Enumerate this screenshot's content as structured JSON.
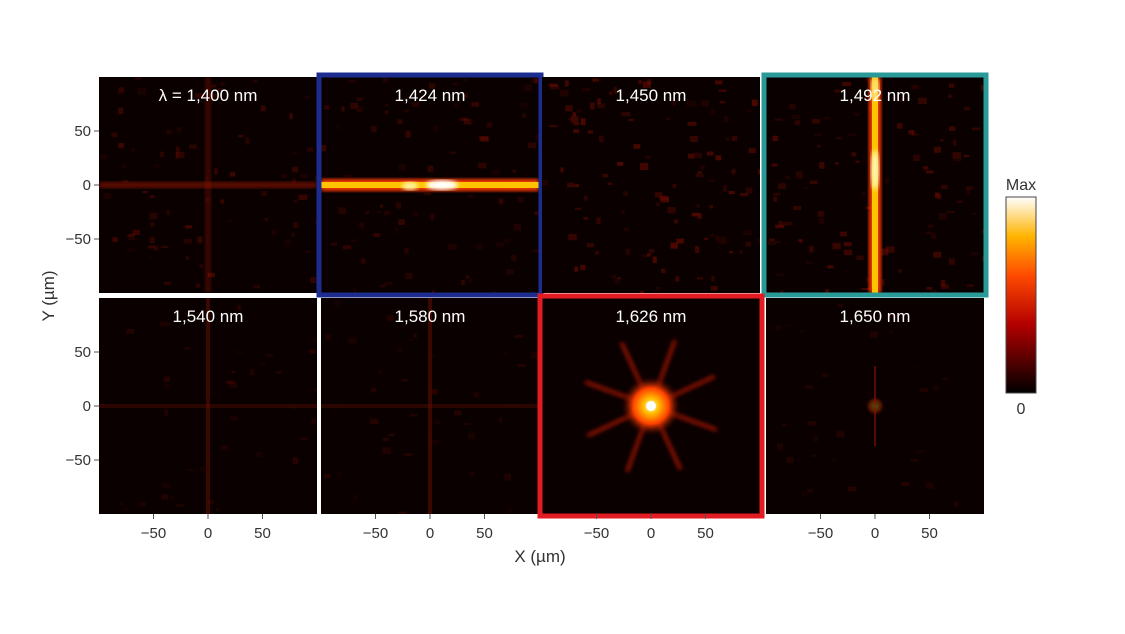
{
  "chart_data": {
    "type": "heatmap",
    "xlabel": "X (µm)",
    "ylabel": "Y (µm)",
    "xlim": [
      -100,
      100
    ],
    "ylim": [
      -100,
      100
    ],
    "x_ticks": [
      -50,
      0,
      50
    ],
    "y_ticks": [
      50,
      0,
      -50
    ],
    "colorbar": {
      "max_label": "Max",
      "min_label": "0",
      "colormap": "hot"
    },
    "panels": [
      {
        "label": "λ = 1,400 nm",
        "wavelength_nm": 1400,
        "pattern": "weak-cross",
        "peak": 0.25,
        "highlight": ""
      },
      {
        "label": "1,424 nm",
        "wavelength_nm": 1424,
        "pattern": "horizontal-line",
        "peak": 1.0,
        "highlight": "#1c2d8f"
      },
      {
        "label": "1,450 nm",
        "wavelength_nm": 1450,
        "pattern": "diffuse",
        "peak": 0.18,
        "highlight": ""
      },
      {
        "label": "1,492 nm",
        "wavelength_nm": 1492,
        "pattern": "vertical-line",
        "peak": 1.0,
        "highlight": "#2a9a98"
      },
      {
        "label": "1,540 nm",
        "wavelength_nm": 1540,
        "pattern": "faint-cross",
        "peak": 0.12,
        "highlight": ""
      },
      {
        "label": "1,580 nm",
        "wavelength_nm": 1580,
        "pattern": "faint-cross",
        "peak": 0.1,
        "highlight": ""
      },
      {
        "label": "1,626 nm",
        "wavelength_nm": 1626,
        "pattern": "point-focus",
        "peak": 1.0,
        "highlight": "#e31b23"
      },
      {
        "label": "1,650 nm",
        "wavelength_nm": 1650,
        "pattern": "weak-point",
        "peak": 0.3,
        "highlight": ""
      }
    ]
  }
}
